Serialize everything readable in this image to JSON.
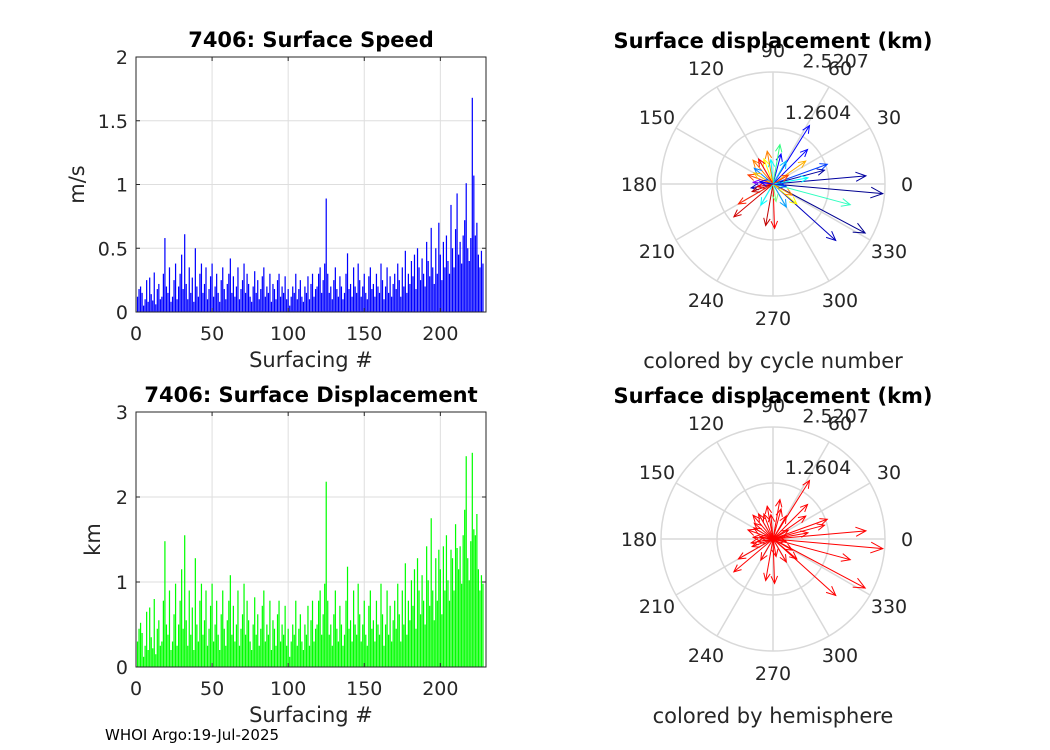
{
  "chart_data": [
    {
      "type": "bar",
      "title": "7406: Surface Speed",
      "xlabel": "Surfacing #",
      "ylabel": "m/s",
      "xlim": [
        0,
        230
      ],
      "ylim": [
        0,
        2
      ],
      "xticks": [
        "0",
        "50",
        "100",
        "150",
        "200"
      ],
      "yticks": [
        "0",
        "0.5",
        "1",
        "1.5",
        "2"
      ],
      "color": "#0000ff",
      "values": [
        0.12,
        0.18,
        0.2,
        0.15,
        0.05,
        0.1,
        0.25,
        0.08,
        0.27,
        0.14,
        0.09,
        0.31,
        0.06,
        0.18,
        0.22,
        0.1,
        0.12,
        0.3,
        0.58,
        0.2,
        0.15,
        0.35,
        0.08,
        0.12,
        0.25,
        0.38,
        0.1,
        0.2,
        0.3,
        0.45,
        0.18,
        0.61,
        0.22,
        0.1,
        0.35,
        0.15,
        0.27,
        0.08,
        0.5,
        0.2,
        0.12,
        0.3,
        0.38,
        0.15,
        0.22,
        0.35,
        0.1,
        0.18,
        0.28,
        0.38,
        0.12,
        0.2,
        0.3,
        0.15,
        0.08,
        0.25,
        0.35,
        0.18,
        0.1,
        0.22,
        0.3,
        0.42,
        0.15,
        0.28,
        0.12,
        0.2,
        0.35,
        0.1,
        0.18,
        0.25,
        0.38,
        0.15,
        0.3,
        0.22,
        0.12,
        0.08,
        0.2,
        0.32,
        0.15,
        0.25,
        0.1,
        0.18,
        0.28,
        0.35,
        0.12,
        0.2,
        0.15,
        0.3,
        0.08,
        0.22,
        0.18,
        0.1,
        0.25,
        0.3,
        0.12,
        0.2,
        0.15,
        0.28,
        0.1,
        0.18,
        0.05,
        0.12,
        0.2,
        0.15,
        0.3,
        0.1,
        0.18,
        0.25,
        0.12,
        0.08,
        0.2,
        0.15,
        0.28,
        0.1,
        0.22,
        0.3,
        0.12,
        0.18,
        0.2,
        0.3,
        0.35,
        0.15,
        0.25,
        0.38,
        0.89,
        0.3,
        0.15,
        0.2,
        0.1,
        0.25,
        0.35,
        0.18,
        0.12,
        0.28,
        0.2,
        0.1,
        0.15,
        0.3,
        0.46,
        0.18,
        0.22,
        0.12,
        0.35,
        0.2,
        0.15,
        0.38,
        0.25,
        0.12,
        0.2,
        0.3,
        0.15,
        0.1,
        0.28,
        0.35,
        0.18,
        0.22,
        0.12,
        0.3,
        0.2,
        0.15,
        0.38,
        0.25,
        0.1,
        0.2,
        0.35,
        0.15,
        0.28,
        0.12,
        0.22,
        0.3,
        0.18,
        0.38,
        0.25,
        0.12,
        0.35,
        0.2,
        0.48,
        0.15,
        0.3,
        0.22,
        0.4,
        0.28,
        0.45,
        0.18,
        0.5,
        0.35,
        0.25,
        0.42,
        0.3,
        0.2,
        0.55,
        0.4,
        0.28,
        0.66,
        0.35,
        0.22,
        0.5,
        0.3,
        0.7,
        0.45,
        0.25,
        0.55,
        0.35,
        0.6,
        0.4,
        0.3,
        0.84,
        0.5,
        0.35,
        0.65,
        0.93,
        0.45,
        0.55,
        0.38,
        0.6,
        0.72,
        1.01,
        0.5,
        0.4,
        0.58,
        1.68,
        1.07,
        0.6,
        0.7,
        0.45,
        0.35,
        0.48,
        0.38
      ],
      "frame": [
        136,
        57,
        486,
        312
      ]
    },
    {
      "type": "bar",
      "title": "7406: Surface Displacement",
      "xlabel": "Surfacing #",
      "ylabel": "km",
      "xlim": [
        0,
        230
      ],
      "ylim": [
        0,
        3
      ],
      "xticks": [
        "0",
        "50",
        "100",
        "150",
        "200"
      ],
      "yticks": [
        "0",
        "1",
        "2",
        "3"
      ],
      "color": "#00ff00",
      "values": [
        0.3,
        0.45,
        0.52,
        0.4,
        0.12,
        0.25,
        0.65,
        0.2,
        0.7,
        0.35,
        0.22,
        0.8,
        0.15,
        0.45,
        0.55,
        0.25,
        0.3,
        0.78,
        1.48,
        0.5,
        0.38,
        0.9,
        0.2,
        0.3,
        0.62,
        0.98,
        0.25,
        0.5,
        0.78,
        1.15,
        0.45,
        1.55,
        0.55,
        0.25,
        0.9,
        0.38,
        0.7,
        0.2,
        1.28,
        0.5,
        0.3,
        0.78,
        0.98,
        0.38,
        0.55,
        0.9,
        0.25,
        0.45,
        0.72,
        0.98,
        0.3,
        0.5,
        0.78,
        0.38,
        0.2,
        0.62,
        0.9,
        0.45,
        0.25,
        0.55,
        0.78,
        1.08,
        0.38,
        0.72,
        0.3,
        0.5,
        0.9,
        0.25,
        0.45,
        0.62,
        0.98,
        0.38,
        0.78,
        0.55,
        0.3,
        0.2,
        0.5,
        0.82,
        0.38,
        0.62,
        0.25,
        0.45,
        0.72,
        0.9,
        0.3,
        0.5,
        0.38,
        0.78,
        0.2,
        0.55,
        0.45,
        0.25,
        0.62,
        0.78,
        0.3,
        0.5,
        0.38,
        0.72,
        0.25,
        0.45,
        0.12,
        0.3,
        0.5,
        0.38,
        0.78,
        0.25,
        0.45,
        0.62,
        0.3,
        0.2,
        0.5,
        0.38,
        0.72,
        0.25,
        0.55,
        0.78,
        0.3,
        0.45,
        0.5,
        0.78,
        0.9,
        0.38,
        0.62,
        0.98,
        2.18,
        0.78,
        0.38,
        0.5,
        0.25,
        0.62,
        0.9,
        0.45,
        0.3,
        0.72,
        0.5,
        0.25,
        0.38,
        0.78,
        1.18,
        0.45,
        0.55,
        0.3,
        0.9,
        0.5,
        0.38,
        0.98,
        0.62,
        0.3,
        0.5,
        0.78,
        0.38,
        0.25,
        0.72,
        0.9,
        0.45,
        0.55,
        0.3,
        0.78,
        0.5,
        0.38,
        0.98,
        0.62,
        0.25,
        0.5,
        0.9,
        0.38,
        0.72,
        0.3,
        0.55,
        0.78,
        0.45,
        0.98,
        0.62,
        0.3,
        0.9,
        0.5,
        1.22,
        0.38,
        0.78,
        0.55,
        1.02,
        0.72,
        1.15,
        0.45,
        1.28,
        0.9,
        0.62,
        1.08,
        0.78,
        0.5,
        1.42,
        1.02,
        0.72,
        1.75,
        0.9,
        0.55,
        1.28,
        0.78,
        1.38,
        1.15,
        0.62,
        1.42,
        0.9,
        1.55,
        1.02,
        0.78,
        1.38,
        1.28,
        0.9,
        1.68,
        1.4,
        1.15,
        1.42,
        0.98,
        1.55,
        1.85,
        2.48,
        1.28,
        1.02,
        1.48,
        2.52,
        1.62,
        1.55,
        1.8,
        1.15,
        0.9,
        1.08,
        0.98
      ],
      "frame": [
        136,
        412,
        486,
        667
      ]
    },
    {
      "type": "polar",
      "title": "Surface displacement (km)",
      "caption": "colored by cycle number",
      "rmax": 2.5207,
      "ring_labels": [
        "1.2604",
        "2.5207"
      ],
      "angle_labels": [
        "0",
        "30",
        "60",
        "90",
        "120",
        "150",
        "180",
        "210",
        "240",
        "270",
        "300",
        "330"
      ],
      "arrows": [
        {
          "angle": -5,
          "length": 2.48,
          "color": "#000090"
        },
        {
          "angle": -28,
          "length": 2.35,
          "color": "#00008f"
        },
        {
          "angle": -42,
          "length": 1.9,
          "color": "#0000c0"
        },
        {
          "angle": 58,
          "length": 1.55,
          "color": "#0000ff"
        },
        {
          "angle": 20,
          "length": 1.3,
          "color": "#0040ff"
        },
        {
          "angle": 5,
          "length": 2.1,
          "color": "#0000a0"
        },
        {
          "angle": -15,
          "length": 1.8,
          "color": "#30ffc0"
        },
        {
          "angle": 35,
          "length": 0.9,
          "color": "#ffb000"
        },
        {
          "angle": -88,
          "length": 1.0,
          "color": "#ff0000"
        },
        {
          "angle": -100,
          "length": 0.95,
          "color": "#c00000"
        },
        {
          "angle": -140,
          "length": 1.15,
          "color": "#d00000"
        },
        {
          "angle": -150,
          "length": 0.9,
          "color": "#ff2000"
        },
        {
          "angle": 160,
          "length": 0.6,
          "color": "#ff4000"
        },
        {
          "angle": 130,
          "length": 0.7,
          "color": "#ff8000"
        },
        {
          "angle": 110,
          "length": 0.6,
          "color": "#ffff00"
        },
        {
          "angle": 95,
          "length": 0.55,
          "color": "#00ffff"
        },
        {
          "angle": 75,
          "length": 0.7,
          "color": "#0000ff"
        },
        {
          "angle": 140,
          "length": 0.55,
          "color": "#0080ff"
        },
        {
          "angle": 175,
          "length": 0.45,
          "color": "#8000ff"
        },
        {
          "angle": -170,
          "length": 0.5,
          "color": "#0000c0"
        },
        {
          "angle": -60,
          "length": 0.6,
          "color": "#00a0ff"
        },
        {
          "angle": -120,
          "length": 0.55,
          "color": "#00ffff"
        },
        {
          "angle": 45,
          "length": 1.1,
          "color": "#0000ff"
        },
        {
          "angle": 15,
          "length": 1.2,
          "color": "#0000a0"
        },
        {
          "angle": 10,
          "length": 0.8,
          "color": "#00ffff"
        },
        {
          "angle": -40,
          "length": 0.7,
          "color": "#ffff00"
        },
        {
          "angle": 100,
          "length": 0.75,
          "color": "#ff8000"
        },
        {
          "angle": 120,
          "length": 0.65,
          "color": "#ff0000"
        },
        {
          "angle": 150,
          "length": 0.5,
          "color": "#ffc000"
        },
        {
          "angle": -30,
          "length": 0.5,
          "color": "#ff8000"
        },
        {
          "angle": 80,
          "length": 0.9,
          "color": "#30ff80"
        },
        {
          "angle": 60,
          "length": 0.6,
          "color": "#00c0ff"
        },
        {
          "angle": -80,
          "length": 0.4,
          "color": "#80ff80"
        },
        {
          "angle": 190,
          "length": 0.35,
          "color": "#ff0000"
        },
        {
          "angle": 200,
          "length": 0.5,
          "color": "#c00000"
        },
        {
          "angle": 30,
          "length": 0.4,
          "color": "#ff4000"
        },
        {
          "angle": -10,
          "length": 0.3,
          "color": "#0040ff"
        },
        {
          "angle": 170,
          "length": 0.3,
          "color": "#0000ff"
        }
      ],
      "center": [
        773,
        184
      ],
      "radius": 112
    },
    {
      "type": "polar",
      "title": "Surface displacement (km)",
      "caption": "colored by hemisphere",
      "rmax": 2.5207,
      "ring_labels": [
        "1.2604",
        "2.5207"
      ],
      "angle_labels": [
        "0",
        "30",
        "60",
        "90",
        "120",
        "150",
        "180",
        "210",
        "240",
        "270",
        "300",
        "330"
      ],
      "color": "#ff0000",
      "arrows": [
        {
          "angle": -5,
          "length": 2.48
        },
        {
          "angle": -28,
          "length": 2.35
        },
        {
          "angle": -42,
          "length": 1.9
        },
        {
          "angle": 58,
          "length": 1.55
        },
        {
          "angle": 20,
          "length": 1.3
        },
        {
          "angle": 5,
          "length": 2.1
        },
        {
          "angle": -15,
          "length": 1.8
        },
        {
          "angle": 35,
          "length": 0.9
        },
        {
          "angle": -88,
          "length": 1.0
        },
        {
          "angle": -100,
          "length": 0.95
        },
        {
          "angle": -140,
          "length": 1.15
        },
        {
          "angle": -150,
          "length": 0.9
        },
        {
          "angle": 160,
          "length": 0.6
        },
        {
          "angle": 130,
          "length": 0.7
        },
        {
          "angle": 110,
          "length": 0.6
        },
        {
          "angle": 95,
          "length": 0.55
        },
        {
          "angle": 75,
          "length": 0.7
        },
        {
          "angle": 140,
          "length": 0.55
        },
        {
          "angle": 175,
          "length": 0.45
        },
        {
          "angle": -170,
          "length": 0.5
        },
        {
          "angle": -60,
          "length": 0.6
        },
        {
          "angle": -120,
          "length": 0.55
        },
        {
          "angle": 45,
          "length": 1.1
        },
        {
          "angle": 15,
          "length": 1.2
        },
        {
          "angle": 10,
          "length": 0.8
        },
        {
          "angle": -40,
          "length": 0.7
        },
        {
          "angle": 100,
          "length": 0.75
        },
        {
          "angle": 120,
          "length": 0.65
        },
        {
          "angle": 150,
          "length": 0.5
        },
        {
          "angle": -30,
          "length": 0.5
        },
        {
          "angle": 80,
          "length": 0.9
        },
        {
          "angle": 60,
          "length": 0.6
        },
        {
          "angle": -80,
          "length": 0.4
        },
        {
          "angle": 190,
          "length": 0.35
        },
        {
          "angle": 200,
          "length": 0.5
        },
        {
          "angle": 30,
          "length": 0.4
        },
        {
          "angle": -10,
          "length": 0.3
        },
        {
          "angle": 170,
          "length": 0.3
        }
      ],
      "center": [
        773,
        539
      ],
      "radius": 112
    }
  ],
  "footer": "WHOI Argo:19-Jul-2025"
}
